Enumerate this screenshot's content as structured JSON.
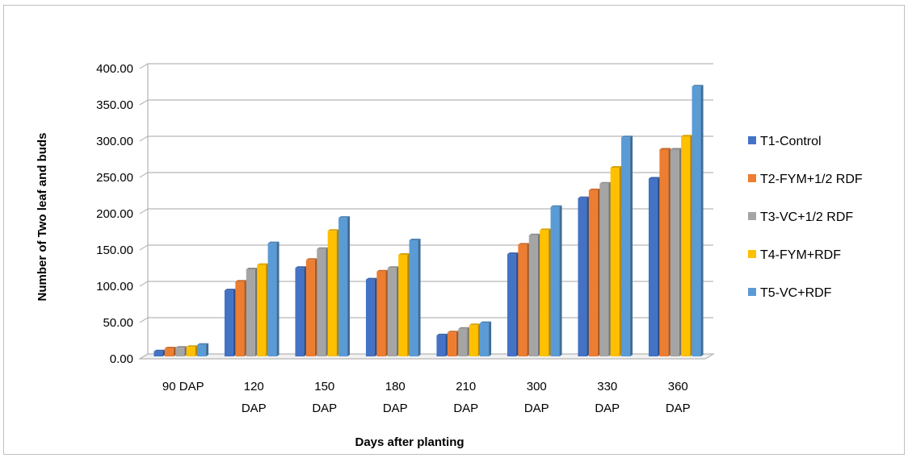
{
  "chart_data": {
    "type": "bar",
    "title": "",
    "xlabel": "Days after planting",
    "ylabel": "Number of Two leaf and buds",
    "ylim": [
      0,
      400
    ],
    "y_ticks": [
      "0.00",
      "50.00",
      "100.00",
      "150.00",
      "200.00",
      "250.00",
      "300.00",
      "350.00",
      "400.00"
    ],
    "categories": [
      [
        "90 DAP"
      ],
      [
        "120",
        "DAP"
      ],
      [
        "150",
        "DAP"
      ],
      [
        "180",
        "DAP"
      ],
      [
        "210",
        "DAP"
      ],
      [
        "300",
        "DAP"
      ],
      [
        "330",
        "DAP"
      ],
      [
        "360",
        "DAP"
      ]
    ],
    "series": [
      {
        "name": "T1-Control",
        "color": "#4472C4",
        "values": [
          7,
          91,
          122,
          106,
          29,
          141,
          218,
          245
        ]
      },
      {
        "name": "T2-FYM+1/2 RDF",
        "color": "#ED7D31",
        "values": [
          11,
          103,
          133,
          117,
          33,
          154,
          229,
          285
        ]
      },
      {
        "name": "T3-VC+1/2 RDF",
        "color": "#A5A5A5",
        "values": [
          12,
          120,
          148,
          122,
          38,
          167,
          238,
          285
        ]
      },
      {
        "name": "T4-FYM+RDF",
        "color": "#FFC000",
        "values": [
          13,
          126,
          173,
          140,
          43,
          174,
          260,
          303
        ]
      },
      {
        "name": "T5-VC+RDF",
        "color": "#5B9BD5",
        "values": [
          16,
          156,
          191,
          160,
          46,
          206,
          302,
          372
        ]
      }
    ],
    "grid": true,
    "legend_position": "right"
  }
}
